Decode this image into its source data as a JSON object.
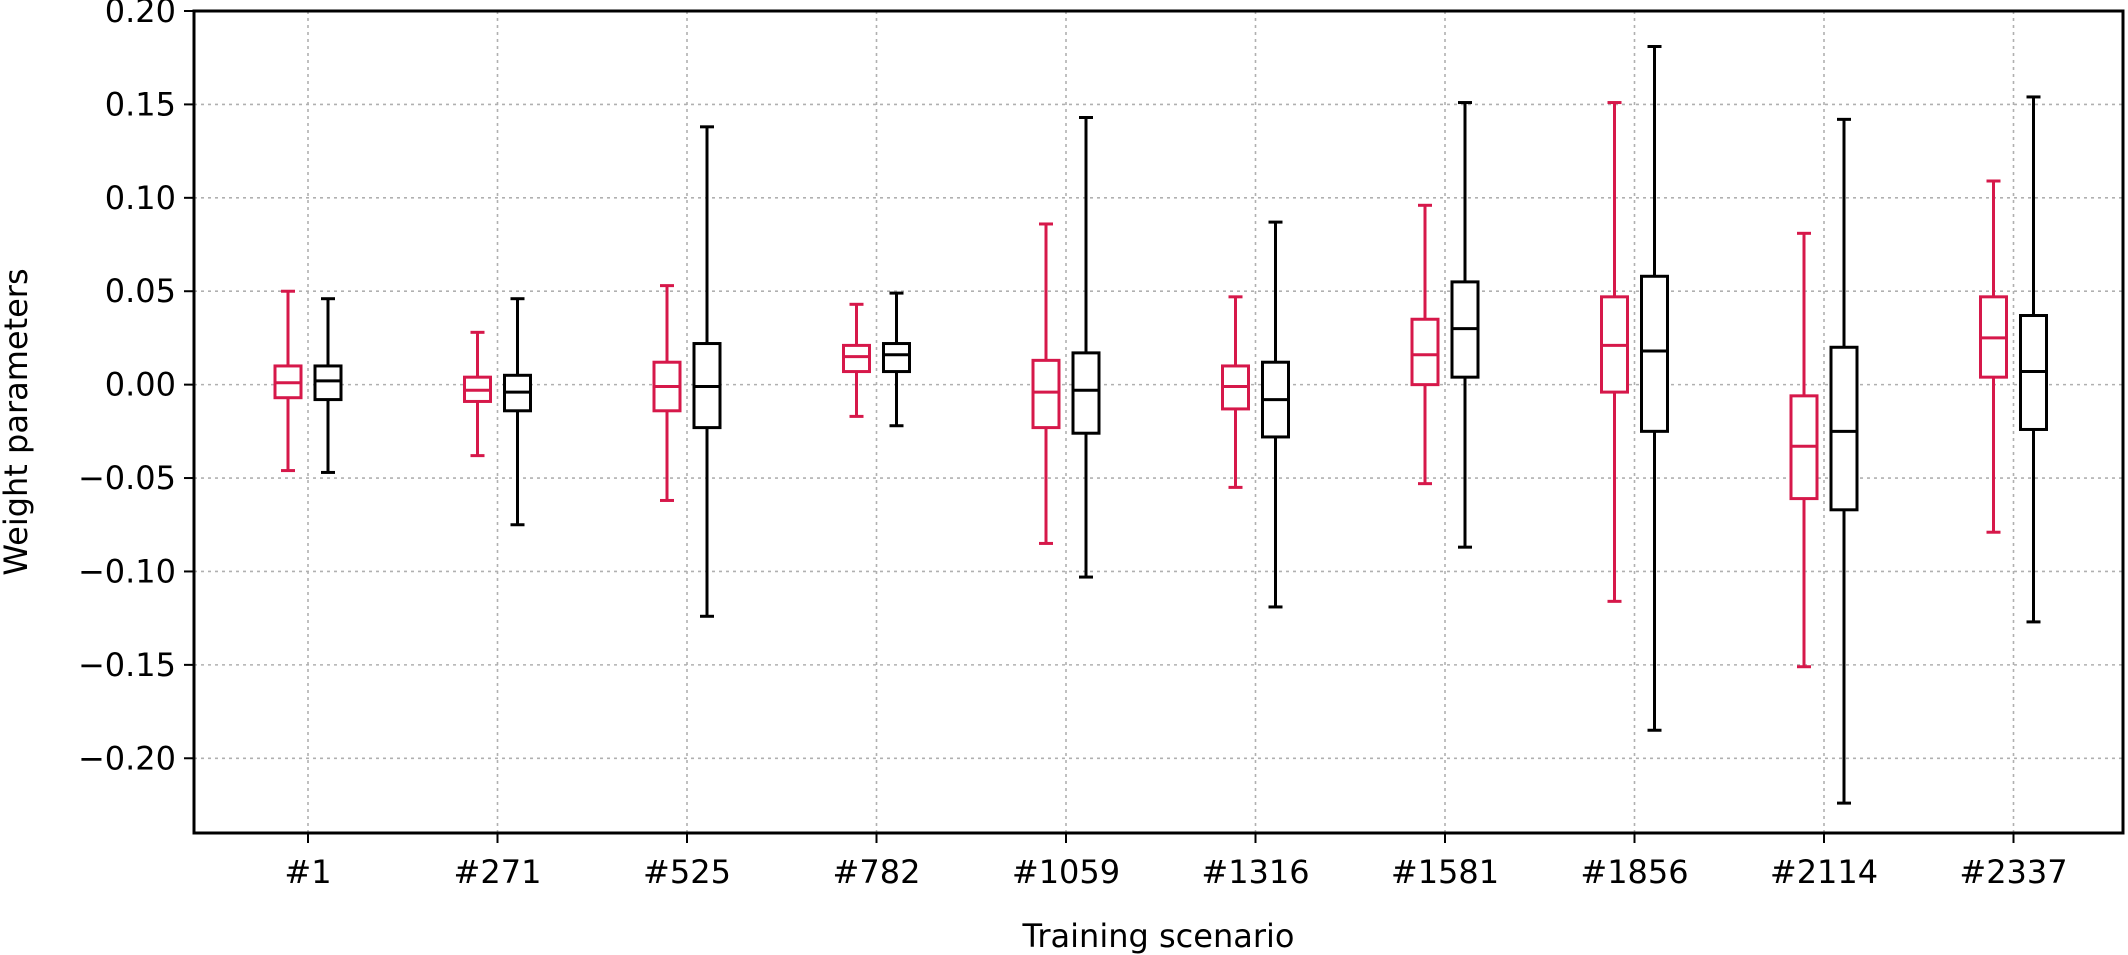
{
  "chart_data": {
    "type": "boxplot",
    "xlabel": "Training scenario",
    "ylabel": "Weight parameters",
    "ylim": [
      -0.24,
      0.2
    ],
    "yticks": [
      0.2,
      0.15,
      0.1,
      0.05,
      0.0,
      -0.05,
      -0.1,
      -0.15,
      -0.2
    ],
    "ytick_labels": [
      "0.20",
      "0.15",
      "0.10",
      "0.05",
      "0.00",
      "−0.05",
      "−0.10",
      "−0.15",
      "−0.20"
    ],
    "grid": true,
    "categories": [
      "#1",
      "#271",
      "#525",
      "#782",
      "#1059",
      "#1316",
      "#1581",
      "#1856",
      "#2114",
      "#2337"
    ],
    "series": [
      {
        "color": "#d6184a",
        "boxes": [
          {
            "whisker_low": -0.046,
            "q1": -0.007,
            "median": 0.001,
            "q3": 0.01,
            "whisker_high": 0.05
          },
          {
            "whisker_low": -0.038,
            "q1": -0.009,
            "median": -0.003,
            "q3": 0.004,
            "whisker_high": 0.028
          },
          {
            "whisker_low": -0.062,
            "q1": -0.014,
            "median": -0.001,
            "q3": 0.012,
            "whisker_high": 0.053
          },
          {
            "whisker_low": -0.017,
            "q1": 0.007,
            "median": 0.015,
            "q3": 0.021,
            "whisker_high": 0.043
          },
          {
            "whisker_low": -0.085,
            "q1": -0.023,
            "median": -0.004,
            "q3": 0.013,
            "whisker_high": 0.086
          },
          {
            "whisker_low": -0.055,
            "q1": -0.013,
            "median": -0.001,
            "q3": 0.01,
            "whisker_high": 0.047
          },
          {
            "whisker_low": -0.053,
            "q1": 0.0,
            "median": 0.016,
            "q3": 0.035,
            "whisker_high": 0.096
          },
          {
            "whisker_low": -0.116,
            "q1": -0.004,
            "median": 0.021,
            "q3": 0.047,
            "whisker_high": 0.151
          },
          {
            "whisker_low": -0.151,
            "q1": -0.061,
            "median": -0.033,
            "q3": -0.006,
            "whisker_high": 0.081
          },
          {
            "whisker_low": -0.079,
            "q1": 0.004,
            "median": 0.025,
            "q3": 0.047,
            "whisker_high": 0.109
          }
        ]
      },
      {
        "color": "#000000",
        "boxes": [
          {
            "whisker_low": -0.047,
            "q1": -0.008,
            "median": 0.002,
            "q3": 0.01,
            "whisker_high": 0.046
          },
          {
            "whisker_low": -0.075,
            "q1": -0.014,
            "median": -0.004,
            "q3": 0.005,
            "whisker_high": 0.046
          },
          {
            "whisker_low": -0.124,
            "q1": -0.023,
            "median": -0.001,
            "q3": 0.022,
            "whisker_high": 0.138
          },
          {
            "whisker_low": -0.022,
            "q1": 0.007,
            "median": 0.016,
            "q3": 0.022,
            "whisker_high": 0.049
          },
          {
            "whisker_low": -0.103,
            "q1": -0.026,
            "median": -0.003,
            "q3": 0.017,
            "whisker_high": 0.143
          },
          {
            "whisker_low": -0.119,
            "q1": -0.028,
            "median": -0.008,
            "q3": 0.012,
            "whisker_high": 0.087
          },
          {
            "whisker_low": -0.087,
            "q1": 0.004,
            "median": 0.03,
            "q3": 0.055,
            "whisker_high": 0.151
          },
          {
            "whisker_low": -0.185,
            "q1": -0.025,
            "median": 0.018,
            "q3": 0.058,
            "whisker_high": 0.181
          },
          {
            "whisker_low": -0.224,
            "q1": -0.067,
            "median": -0.025,
            "q3": 0.02,
            "whisker_high": 0.142
          },
          {
            "whisker_low": -0.127,
            "q1": -0.024,
            "median": 0.007,
            "q3": 0.037,
            "whisker_high": 0.154
          }
        ]
      }
    ]
  }
}
